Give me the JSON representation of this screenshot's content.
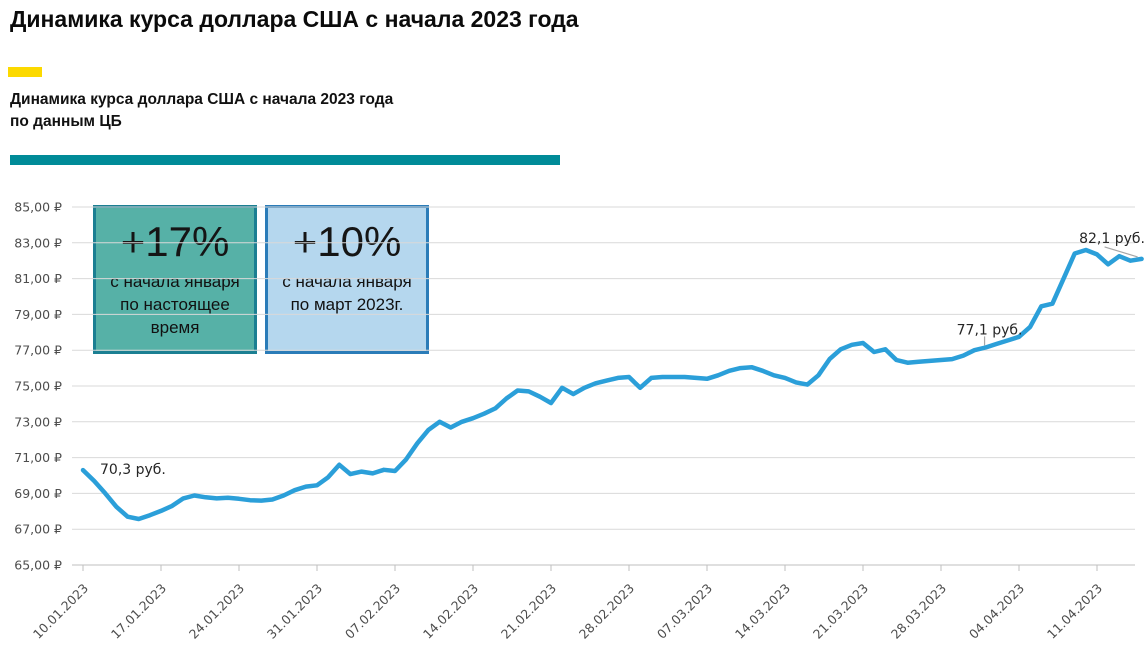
{
  "header": {
    "title": "Динамика курса доллара США с начала 2023 года",
    "tag_color": "#fcd900",
    "subtitle_line1": "Динамика курса доллара США с начала 2023 года",
    "subtitle_line2": "по данным ЦБ",
    "divider_color": "#008b98"
  },
  "callouts": [
    {
      "value": "+17%",
      "caption": "с начала января по настоящее время",
      "fill": "#56b1a7",
      "border": "#1b7f92"
    },
    {
      "value": "+10%",
      "caption": "с начала января по март 2023г.",
      "fill": "#b5d7ee",
      "border": "#2b7cb8"
    }
  ],
  "chart_data": {
    "type": "line",
    "title": "Динамика курса доллара США с начала 2023 года по данным ЦБ",
    "xlabel": "",
    "ylabel": "",
    "ylim": [
      65,
      85
    ],
    "y_tick_step": 2,
    "y_tick_labels": [
      "85,00 ₽",
      "83,00 ₽",
      "81,00 ₽",
      "79,00 ₽",
      "77,00 ₽",
      "75,00 ₽",
      "73,00 ₽",
      "71,00 ₽",
      "69,00 ₽",
      "67,00 ₽",
      "65,00 ₽"
    ],
    "x_tick_labels": [
      "10.01.2023",
      "17.01.2023",
      "24.01.2023",
      "31.01.2023",
      "07.02.2023",
      "14.02.2023",
      "21.02.2023",
      "28.02.2023",
      "07.03.2023",
      "14.03.2023",
      "21.03.2023",
      "28.03.2023",
      "04.04.2023",
      "11.04.2023"
    ],
    "days_per_x_tick": 7,
    "grid": "horizontal",
    "legend": "none",
    "line_color": "#2b9fd9",
    "grid_color": "#d9d9d9",
    "axis_color": "#bfbfbf",
    "leader_color": "#a6a6a6",
    "series": [
      {
        "name": "Курс доллара США",
        "points": [
          [
            0,
            70.3
          ],
          [
            1,
            69.7
          ],
          [
            2,
            69.0
          ],
          [
            3,
            68.25
          ],
          [
            4,
            67.7
          ],
          [
            5,
            67.57
          ],
          [
            6,
            67.78
          ],
          [
            7,
            68.02
          ],
          [
            8,
            68.3
          ],
          [
            9,
            68.72
          ],
          [
            10,
            68.88
          ],
          [
            11,
            68.78
          ],
          [
            12,
            68.72
          ],
          [
            13,
            68.76
          ],
          [
            14,
            68.7
          ],
          [
            15,
            68.62
          ],
          [
            16,
            68.6
          ],
          [
            17,
            68.66
          ],
          [
            18,
            68.88
          ],
          [
            19,
            69.18
          ],
          [
            20,
            69.38
          ],
          [
            21,
            69.45
          ],
          [
            22,
            69.9
          ],
          [
            23,
            70.6
          ],
          [
            24,
            70.08
          ],
          [
            25,
            70.22
          ],
          [
            26,
            70.12
          ],
          [
            27,
            70.32
          ],
          [
            28,
            70.25
          ],
          [
            29,
            70.9
          ],
          [
            30,
            71.8
          ],
          [
            31,
            72.55
          ],
          [
            32,
            73.0
          ],
          [
            33,
            72.68
          ],
          [
            34,
            73.0
          ],
          [
            35,
            73.2
          ],
          [
            36,
            73.45
          ],
          [
            37,
            73.75
          ],
          [
            38,
            74.3
          ],
          [
            39,
            74.75
          ],
          [
            40,
            74.7
          ],
          [
            41,
            74.4
          ],
          [
            42,
            74.05
          ],
          [
            43,
            74.9
          ],
          [
            44,
            74.55
          ],
          [
            45,
            74.9
          ],
          [
            46,
            75.15
          ],
          [
            47,
            75.3
          ],
          [
            48,
            75.45
          ],
          [
            49,
            75.5
          ],
          [
            50,
            74.9
          ],
          [
            51,
            75.45
          ],
          [
            52,
            75.5
          ],
          [
            53,
            75.5
          ],
          [
            54,
            75.5
          ],
          [
            55,
            75.45
          ],
          [
            56,
            75.4
          ],
          [
            57,
            75.6
          ],
          [
            58,
            75.85
          ],
          [
            59,
            76.0
          ],
          [
            60,
            76.05
          ],
          [
            61,
            75.85
          ],
          [
            62,
            75.6
          ],
          [
            63,
            75.45
          ],
          [
            64,
            75.2
          ],
          [
            65,
            75.08
          ],
          [
            66,
            75.6
          ],
          [
            67,
            76.5
          ],
          [
            68,
            77.05
          ],
          [
            69,
            77.3
          ],
          [
            70,
            77.4
          ],
          [
            71,
            76.9
          ],
          [
            72,
            77.05
          ],
          [
            73,
            76.45
          ],
          [
            74,
            76.3
          ],
          [
            75,
            76.35
          ],
          [
            76,
            76.4
          ],
          [
            77,
            76.45
          ],
          [
            78,
            76.5
          ],
          [
            79,
            76.7
          ],
          [
            80,
            77.0
          ],
          [
            81,
            77.15
          ],
          [
            82,
            77.35
          ],
          [
            83,
            77.55
          ],
          [
            84,
            77.75
          ],
          [
            85,
            78.3
          ],
          [
            86,
            79.45
          ],
          [
            87,
            79.6
          ],
          [
            88,
            81.0
          ],
          [
            89,
            82.4
          ],
          [
            90,
            82.6
          ],
          [
            91,
            82.35
          ],
          [
            92,
            81.8
          ],
          [
            93,
            82.25
          ],
          [
            94,
            82.0
          ],
          [
            95,
            82.1
          ]
        ]
      }
    ],
    "annotations": [
      {
        "label": "70,3 руб.",
        "day": 0,
        "value": 70.3
      },
      {
        "label": "77,1 руб.",
        "day": 81,
        "value": 77.1
      },
      {
        "label": "82,1 руб.",
        "day": 95,
        "value": 82.1
      }
    ]
  }
}
